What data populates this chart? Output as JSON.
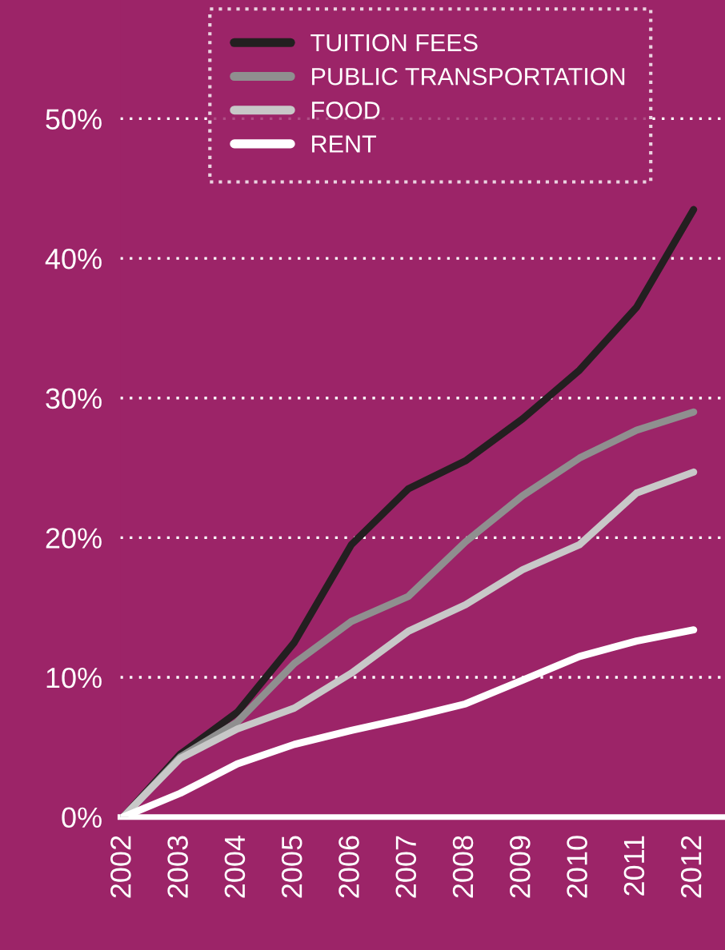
{
  "chart_data": {
    "type": "line",
    "categories": [
      "2002",
      "2003",
      "2004",
      "2005",
      "2006",
      "2007",
      "2008",
      "2009",
      "2010",
      "2011",
      "2012"
    ],
    "series": [
      {
        "name": "TUITION FEES",
        "color": "#231f20",
        "values": [
          0,
          4.5,
          7.5,
          12.5,
          19.5,
          23.5,
          25.5,
          28.5,
          32,
          36.5,
          43.5
        ]
      },
      {
        "name": "PUBLIC TRANSPORTATION",
        "color": "#8f8f8f",
        "values": [
          0,
          4.3,
          6.8,
          11,
          14,
          15.8,
          19.7,
          23,
          25.7,
          27.7,
          29
        ]
      },
      {
        "name": "FOOD",
        "color": "#c8c8c8",
        "values": [
          0,
          4.2,
          6.3,
          7.8,
          10.3,
          13.3,
          15.2,
          17.7,
          19.5,
          23.2,
          24.7
        ]
      },
      {
        "name": "RENT",
        "color": "#ffffff",
        "values": [
          0,
          1.7,
          3.8,
          5.2,
          6.2,
          7.1,
          8.1,
          9.8,
          11.5,
          12.6,
          13.4
        ]
      }
    ],
    "ylim": [
      0,
      58.5
    ],
    "yticks": [
      {
        "value": 0,
        "label": "0%"
      },
      {
        "value": 10,
        "label": "10%"
      },
      {
        "value": 20,
        "label": "20%"
      },
      {
        "value": 30,
        "label": "30%"
      },
      {
        "value": 40,
        "label": "40%"
      },
      {
        "value": 50,
        "label": "50%"
      }
    ],
    "grid": "y",
    "legend": "top left",
    "marker": "none",
    "line_style": "solid"
  }
}
